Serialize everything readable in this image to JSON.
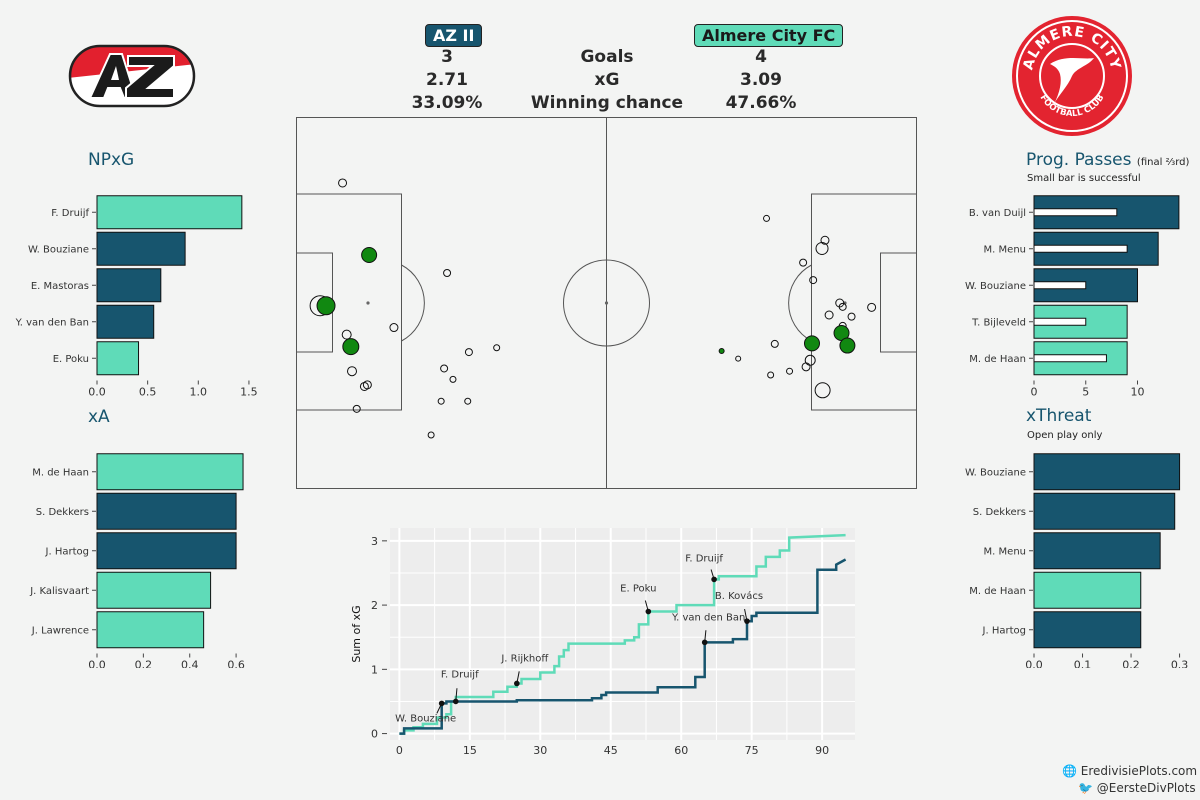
{
  "header": {
    "home_team": "AZ II",
    "away_team": "Almere City FC",
    "home_color": "#17556e",
    "away_color": "#5fdbb8",
    "rows": [
      {
        "label": "Goals",
        "home": "3",
        "away": "4"
      },
      {
        "label": "xG",
        "home": "2.71",
        "away": "3.09"
      },
      {
        "label": "Winning chance",
        "home": "33.09%",
        "away": "47.66%"
      }
    ]
  },
  "logos": {
    "home_icon": "az-logo-icon",
    "away_icon": "almere-city-crest-icon",
    "away_text_top": "ALMERE CITY",
    "away_text_bottom": "FOOTBALL CLUB"
  },
  "footer": {
    "website": "EredivisiePlots.com",
    "twitter": "@EersteDivPlots"
  },
  "chart_data": [
    {
      "type": "bar",
      "id": "npxg",
      "title": "NPxG",
      "orientation": "horizontal",
      "categories": [
        "F. Druijf",
        "W. Bouziane",
        "E. Mastoras",
        "Y. van den Ban",
        "E. Poku"
      ],
      "values": [
        1.43,
        0.87,
        0.63,
        0.56,
        0.41
      ],
      "teams": [
        "away",
        "home",
        "home",
        "home",
        "away"
      ],
      "xlim": [
        0,
        1.55
      ],
      "ticks": [
        0.0,
        0.5,
        1.0,
        1.5
      ],
      "tick_labels": [
        "0.0",
        "0.5",
        "1.0",
        "1.5"
      ]
    },
    {
      "type": "bar",
      "id": "xa",
      "title": "xA",
      "orientation": "horizontal",
      "categories": [
        "M. de Haan",
        "S. Dekkers",
        "J. Hartog",
        "J. Kalisvaart",
        "J. Lawrence"
      ],
      "values": [
        0.63,
        0.6,
        0.6,
        0.49,
        0.46
      ],
      "teams": [
        "away",
        "home",
        "home",
        "away",
        "away"
      ],
      "xlim": [
        0,
        0.66
      ],
      "ticks": [
        0.0,
        0.2,
        0.4,
        0.6
      ],
      "tick_labels": [
        "0.0",
        "0.2",
        "0.4",
        "0.6"
      ]
    },
    {
      "type": "bar",
      "id": "progpasses",
      "title": "Prog. Passes",
      "title_suffix": "(final ⅔rd)",
      "subtitle": "Small bar is successful",
      "orientation": "horizontal",
      "categories": [
        "B. van Duijl",
        "M. Menu",
        "W. Bouziane",
        "T. Bijleveld",
        "M. de Haan"
      ],
      "values": [
        14,
        12,
        10,
        9,
        9
      ],
      "successful": [
        8,
        9,
        5,
        5,
        7
      ],
      "teams": [
        "home",
        "home",
        "home",
        "away",
        "away"
      ],
      "xlim": [
        0,
        14.3
      ],
      "ticks": [
        0,
        5,
        10
      ],
      "tick_labels": [
        "0",
        "5",
        "10"
      ]
    },
    {
      "type": "bar",
      "id": "xthreat",
      "title": "xThreat",
      "subtitle": "Open play only",
      "orientation": "horizontal",
      "categories": [
        "W. Bouziane",
        "S. Dekkers",
        "M. Menu",
        "M. de Haan",
        "J. Hartog"
      ],
      "values": [
        0.3,
        0.29,
        0.26,
        0.22,
        0.22
      ],
      "teams": [
        "home",
        "home",
        "home",
        "away",
        "home"
      ],
      "xlim": [
        0,
        0.305
      ],
      "ticks": [
        0.0,
        0.1,
        0.2,
        0.3
      ],
      "tick_labels": [
        "0.0",
        "0.1",
        "0.2",
        "0.3"
      ]
    },
    {
      "type": "scatter",
      "id": "shotmap",
      "pitch": {
        "length": 105,
        "width": 68
      },
      "shots": [
        {
          "x": 4,
          "y": 34.5,
          "r": 10,
          "goal": false
        },
        {
          "x": 5,
          "y": 34.5,
          "r": 9,
          "goal": true
        },
        {
          "x": 7.8,
          "y": 12,
          "r": 4,
          "goal": false
        },
        {
          "x": 12.3,
          "y": 25.2,
          "r": 7.5,
          "goal": true
        },
        {
          "x": 8.5,
          "y": 39.8,
          "r": 4.5,
          "goal": false
        },
        {
          "x": 9.2,
          "y": 42,
          "r": 8,
          "goal": true
        },
        {
          "x": 9.4,
          "y": 46.5,
          "r": 4.5,
          "goal": false
        },
        {
          "x": 11.5,
          "y": 49.3,
          "r": 4,
          "goal": false
        },
        {
          "x": 12,
          "y": 49,
          "r": 4,
          "goal": false
        },
        {
          "x": 10.2,
          "y": 53.4,
          "r": 3.5,
          "goal": false
        },
        {
          "x": 16.5,
          "y": 38.5,
          "r": 4,
          "goal": false
        },
        {
          "x": 25.5,
          "y": 28.5,
          "r": 3.5,
          "goal": false
        },
        {
          "x": 25,
          "y": 46,
          "r": 3.5,
          "goal": false
        },
        {
          "x": 26.5,
          "y": 48,
          "r": 3,
          "goal": false
        },
        {
          "x": 24.5,
          "y": 52,
          "r": 3,
          "goal": false
        },
        {
          "x": 29.2,
          "y": 43,
          "r": 3.5,
          "goal": false
        },
        {
          "x": 29,
          "y": 52,
          "r": 3,
          "goal": false
        },
        {
          "x": 22.8,
          "y": 58.2,
          "r": 3,
          "goal": false
        },
        {
          "x": 33.9,
          "y": 42.2,
          "r": 3,
          "goal": false
        },
        {
          "x": 72,
          "y": 42.8,
          "r": 2.5,
          "goal": true
        },
        {
          "x": 74.8,
          "y": 44.2,
          "r": 2.5,
          "goal": false
        },
        {
          "x": 80.3,
          "y": 47.2,
          "r": 3,
          "goal": false
        },
        {
          "x": 83.5,
          "y": 46.5,
          "r": 3,
          "goal": false
        },
        {
          "x": 81,
          "y": 41.5,
          "r": 3.5,
          "goal": false
        },
        {
          "x": 79.6,
          "y": 18.5,
          "r": 3,
          "goal": false
        },
        {
          "x": 85.8,
          "y": 26.6,
          "r": 3.5,
          "goal": false
        },
        {
          "x": 89.5,
          "y": 22.5,
          "r": 4,
          "goal": false
        },
        {
          "x": 89,
          "y": 24,
          "r": 6,
          "goal": false
        },
        {
          "x": 87.5,
          "y": 29.8,
          "r": 3.5,
          "goal": false
        },
        {
          "x": 87.3,
          "y": 41.4,
          "r": 7.5,
          "goal": true
        },
        {
          "x": 87,
          "y": 44.5,
          "r": 5,
          "goal": false
        },
        {
          "x": 90.2,
          "y": 36.2,
          "r": 4,
          "goal": false
        },
        {
          "x": 92.5,
          "y": 34.7,
          "r": 3.5,
          "goal": false
        },
        {
          "x": 92.5,
          "y": 38.2,
          "r": 3.5,
          "goal": false
        },
        {
          "x": 94,
          "y": 36.5,
          "r": 3.5,
          "goal": false
        },
        {
          "x": 97.4,
          "y": 34.8,
          "r": 4,
          "goal": false
        },
        {
          "x": 92.3,
          "y": 39.5,
          "r": 7.5,
          "goal": true
        },
        {
          "x": 93.3,
          "y": 41.8,
          "r": 7.5,
          "goal": true
        },
        {
          "x": 86.3,
          "y": 45.7,
          "r": 4,
          "goal": false
        },
        {
          "x": 89.1,
          "y": 50,
          "r": 7.5,
          "goal": false
        },
        {
          "x": 92,
          "y": 34,
          "r": 4,
          "goal": false
        }
      ]
    },
    {
      "type": "line",
      "id": "cumxg",
      "ylabel": "Sum of xG",
      "xlim": [
        -2,
        97
      ],
      "ylim": [
        -0.1,
        3.2
      ],
      "xticks": [
        0,
        15,
        30,
        45,
        60,
        75,
        90
      ],
      "yticks": [
        0,
        1,
        2,
        3
      ],
      "series": [
        {
          "team": "away",
          "points": [
            [
              0,
              0
            ],
            [
              1,
              0
            ],
            [
              1,
              0.05
            ],
            [
              3,
              0.05
            ],
            [
              3,
              0.1
            ],
            [
              5,
              0.1
            ],
            [
              5,
              0.15
            ],
            [
              8,
              0.15
            ],
            [
              8,
              0.25
            ],
            [
              10,
              0.25
            ],
            [
              10,
              0.3
            ],
            [
              11,
              0.3
            ],
            [
              11,
              0.5
            ],
            [
              12,
              0.5
            ],
            [
              12,
              0.57
            ],
            [
              20,
              0.57
            ],
            [
              20,
              0.65
            ],
            [
              23,
              0.65
            ],
            [
              23,
              0.73
            ],
            [
              25,
              0.73
            ],
            [
              25,
              0.78
            ],
            [
              26,
              0.78
            ],
            [
              26,
              0.85
            ],
            [
              30,
              0.85
            ],
            [
              30,
              0.95
            ],
            [
              33,
              0.95
            ],
            [
              33,
              1.05
            ],
            [
              34,
              1.05
            ],
            [
              34,
              1.2
            ],
            [
              35,
              1.2
            ],
            [
              35,
              1.3
            ],
            [
              36,
              1.3
            ],
            [
              36,
              1.4
            ],
            [
              48,
              1.4
            ],
            [
              48,
              1.45
            ],
            [
              50,
              1.45
            ],
            [
              50,
              1.5
            ],
            [
              51,
              1.5
            ],
            [
              51,
              1.7
            ],
            [
              53,
              1.7
            ],
            [
              53,
              1.9
            ],
            [
              59,
              1.9
            ],
            [
              59,
              2.0
            ],
            [
              67,
              2.0
            ],
            [
              67,
              2.4
            ],
            [
              68,
              2.4
            ],
            [
              68,
              2.45
            ],
            [
              76,
              2.45
            ],
            [
              76,
              2.6
            ],
            [
              78,
              2.6
            ],
            [
              78,
              2.75
            ],
            [
              81,
              2.75
            ],
            [
              81,
              2.85
            ],
            [
              83,
              2.85
            ],
            [
              83,
              3.05
            ],
            [
              95,
              3.09
            ]
          ]
        },
        {
          "team": "home",
          "points": [
            [
              0,
              0
            ],
            [
              1,
              0
            ],
            [
              1,
              0.08
            ],
            [
              9,
              0.08
            ],
            [
              9,
              0.47
            ],
            [
              10,
              0.47
            ],
            [
              10,
              0.5
            ],
            [
              25,
              0.5
            ],
            [
              25,
              0.52
            ],
            [
              41,
              0.52
            ],
            [
              41,
              0.55
            ],
            [
              43,
              0.55
            ],
            [
              43,
              0.6
            ],
            [
              44,
              0.6
            ],
            [
              44,
              0.64
            ],
            [
              55,
              0.64
            ],
            [
              55,
              0.72
            ],
            [
              63,
              0.72
            ],
            [
              63,
              0.88
            ],
            [
              65,
              0.88
            ],
            [
              65,
              1.42
            ],
            [
              71,
              1.42
            ],
            [
              71,
              1.47
            ],
            [
              74,
              1.47
            ],
            [
              74,
              1.75
            ],
            [
              75,
              1.75
            ],
            [
              75,
              1.83
            ],
            [
              76,
              1.83
            ],
            [
              76,
              1.88
            ],
            [
              89,
              1.88
            ],
            [
              89,
              2.55
            ],
            [
              93,
              2.55
            ],
            [
              93,
              2.63
            ],
            [
              95,
              2.71
            ]
          ]
        }
      ],
      "goals": [
        {
          "label": "W. Bouziane",
          "x": 9,
          "y": 0.47,
          "team": "home"
        },
        {
          "label": "F. Druijf",
          "x": 12,
          "y": 0.5,
          "team": "away"
        },
        {
          "label": "J. Rijkhoff",
          "x": 25,
          "y": 0.78,
          "team": "away"
        },
        {
          "label": "E. Poku",
          "x": 53,
          "y": 1.9,
          "team": "away"
        },
        {
          "label": "Y. van den Ban",
          "x": 65,
          "y": 1.42,
          "team": "home"
        },
        {
          "label": "F. Druijf",
          "x": 67,
          "y": 2.4,
          "team": "away"
        },
        {
          "label": "B. Kovács",
          "x": 74,
          "y": 1.75,
          "team": "home"
        }
      ]
    }
  ]
}
